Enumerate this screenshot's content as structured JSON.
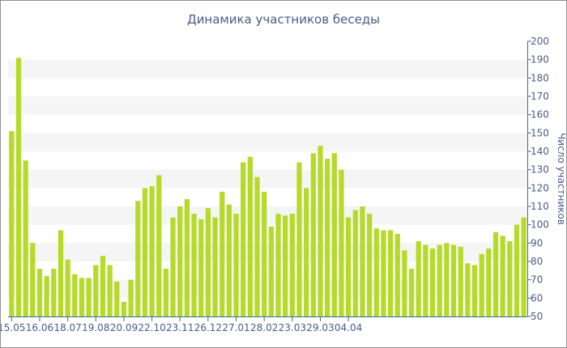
{
  "chart_data": {
    "type": "bar",
    "title": "Динамика участников беседы",
    "ylabel": "Число участников",
    "xlabel": "",
    "ylim": [
      50,
      200
    ],
    "yticks": [
      50,
      60,
      70,
      80,
      90,
      100,
      110,
      120,
      130,
      140,
      150,
      160,
      170,
      180,
      190,
      200
    ],
    "x_tick_labels": [
      "15.05",
      "16.06",
      "18.07",
      "19.08",
      "20.09",
      "22.10",
      "23.11",
      "26.12",
      "27.01",
      "28.02",
      "23.03",
      "29.03",
      "04.04"
    ],
    "x_tick_bar_index": [
      0,
      4,
      8,
      12,
      16,
      20,
      24,
      28,
      32,
      36,
      40,
      44,
      48
    ],
    "values": [
      151,
      191,
      135,
      90,
      76,
      72,
      76,
      97,
      81,
      73,
      71,
      71,
      78,
      83,
      78,
      69,
      58,
      70,
      113,
      120,
      121,
      127,
      76,
      104,
      110,
      114,
      106,
      103,
      109,
      104,
      118,
      111,
      106,
      134,
      137,
      126,
      118,
      99,
      106,
      105,
      106,
      134,
      120,
      139,
      143,
      136,
      139,
      130,
      104,
      108,
      110,
      106,
      98,
      97,
      97,
      95,
      86,
      76,
      91,
      89,
      87,
      89,
      90,
      89,
      88,
      79,
      78,
      84,
      87,
      96,
      94,
      91,
      100,
      104
    ],
    "bar_color": "#b6da2a",
    "band_color": "#f5f5f5",
    "axis_color": "#3a6aa8",
    "text_color": "#4a5a88"
  }
}
